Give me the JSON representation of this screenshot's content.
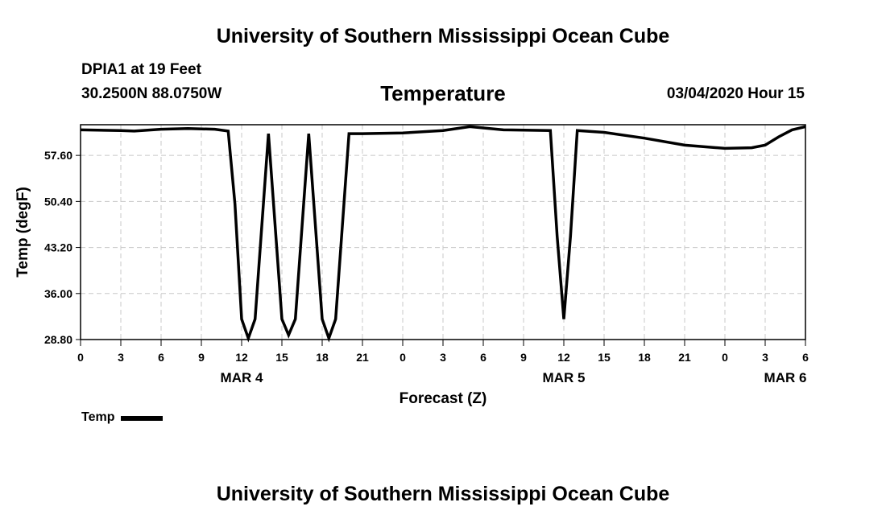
{
  "header": {
    "title": "University of Southern Mississippi Ocean Cube",
    "station": "DPIA1 at 19 Feet",
    "location": "30.2500N 88.0750W",
    "subtitle": "Temperature",
    "timestamp": "03/04/2020 Hour 15"
  },
  "footer": {
    "title": "University of Southern Mississippi Ocean Cube"
  },
  "chart_data": {
    "type": "line",
    "ylabel": "Temp (degF)",
    "xlabel": "Forecast (Z)",
    "ylim": [
      28.8,
      62.4
    ],
    "y_ticks": [
      "28.80",
      "36.00",
      "43.20",
      "50.40",
      "57.60"
    ],
    "x_ticks": [
      "0",
      "3",
      "6",
      "9",
      "12",
      "15",
      "18",
      "21",
      "0",
      "3",
      "6",
      "9",
      "12",
      "15",
      "18",
      "21",
      "0",
      "3",
      "6"
    ],
    "date_labels": [
      {
        "label": "MAR 4",
        "at_hour": 12
      },
      {
        "label": "MAR 5",
        "at_hour": 36
      },
      {
        "label": "MAR 6",
        "at_hour": 52.5
      }
    ],
    "grid": true,
    "legend": "bottom-left",
    "series": [
      {
        "name": "Temp",
        "color": "#000000",
        "hours": [
          0,
          3,
          4,
          6,
          8,
          10,
          11,
          11.5,
          12,
          12.5,
          13,
          14,
          15,
          15.5,
          16,
          17,
          18,
          18.5,
          19,
          20,
          21,
          24,
          27,
          29,
          31.5,
          35,
          35.5,
          36,
          36.5,
          37,
          39,
          42,
          45,
          48,
          50,
          51,
          52,
          53,
          54
        ],
        "values": [
          61.6,
          61.5,
          61.4,
          61.7,
          61.8,
          61.7,
          61.4,
          50.0,
          32.0,
          29.0,
          32.0,
          61.0,
          32.0,
          29.5,
          32.0,
          61.0,
          32.0,
          29.0,
          32.0,
          61.0,
          61.0,
          61.1,
          61.5,
          62.1,
          61.6,
          61.5,
          45.0,
          32.0,
          45.0,
          61.5,
          61.2,
          60.3,
          59.2,
          58.7,
          58.8,
          59.2,
          60.5,
          61.6,
          62.1
        ]
      }
    ]
  }
}
